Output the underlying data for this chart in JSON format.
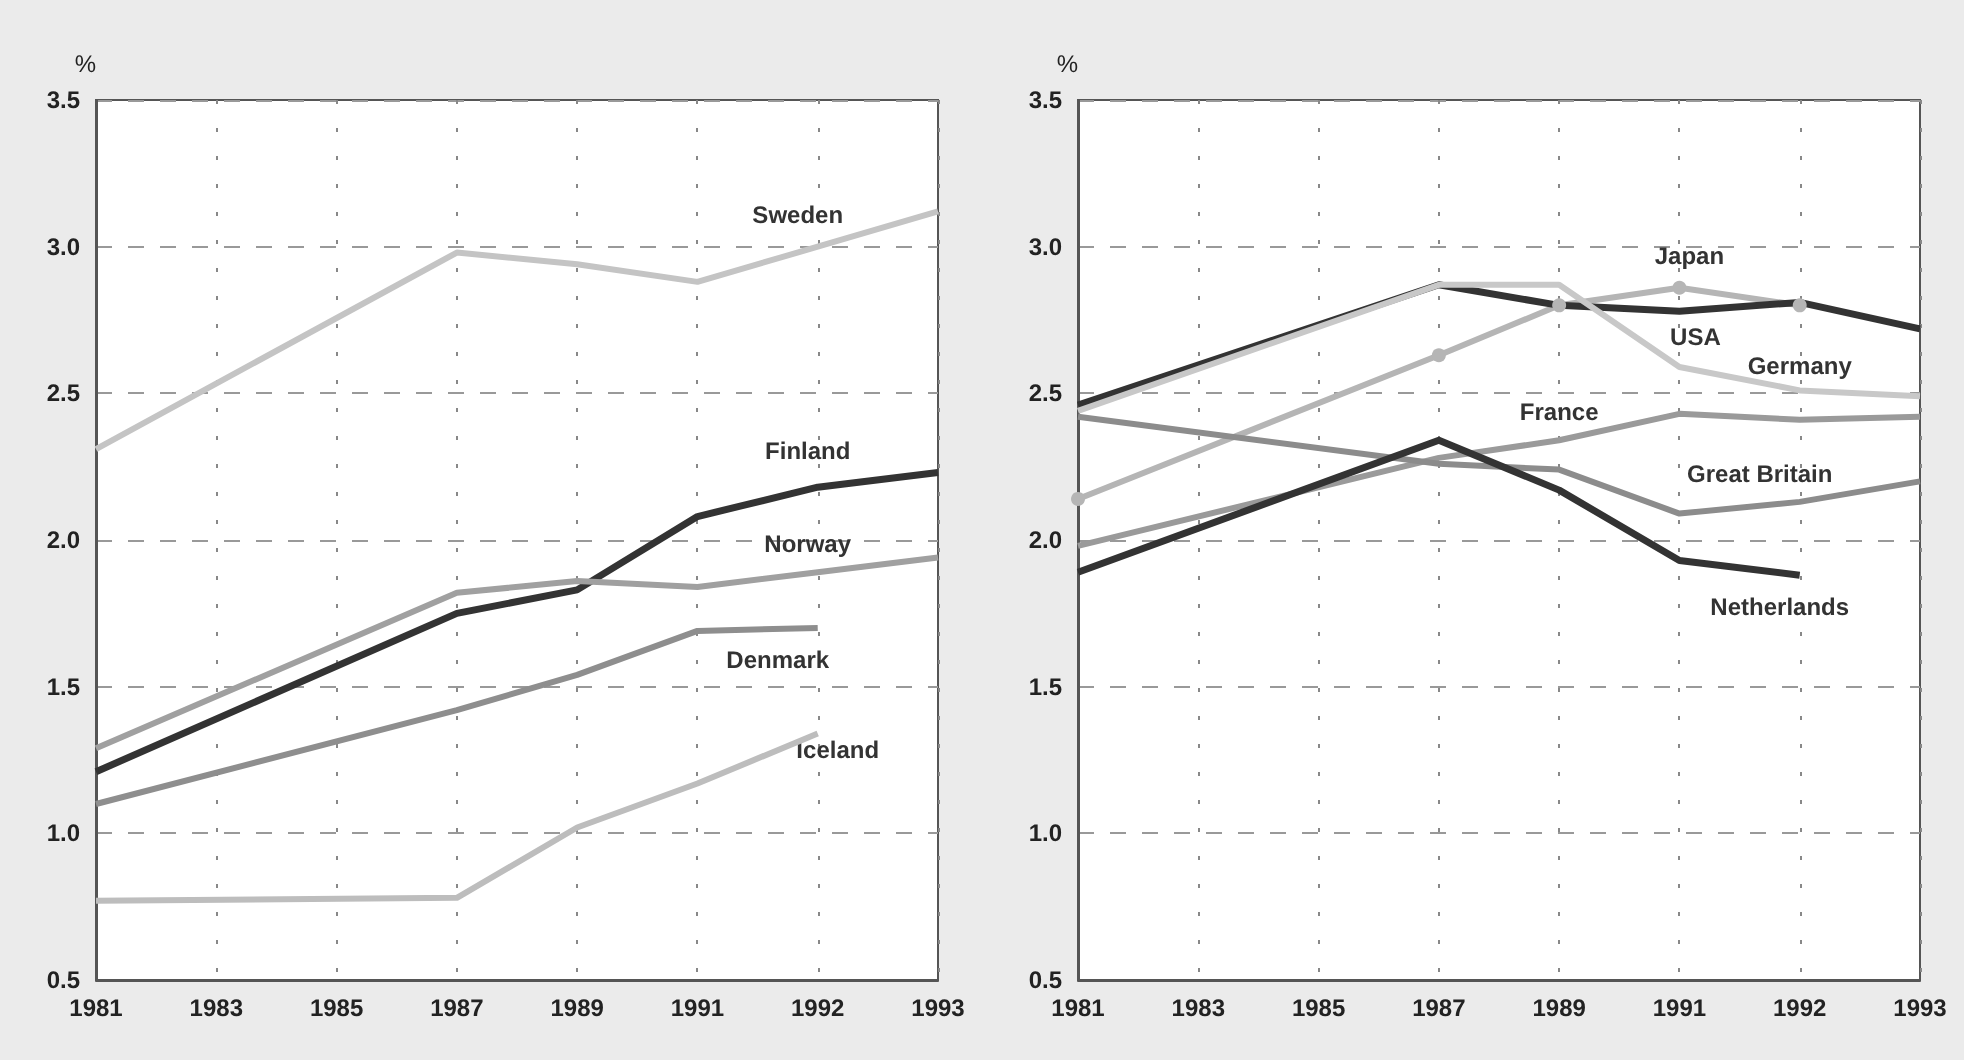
{
  "chart_data": [
    {
      "type": "line",
      "ylabel": "%",
      "categories": [
        "1981",
        "1983",
        "1985",
        "1987",
        "1989",
        "1991",
        "1992",
        "1993"
      ],
      "ylim": [
        0.5,
        3.5
      ],
      "yticks": [
        0.5,
        {
          "value": 1,
          "label": "1.0"
        },
        1.5,
        {
          "value": 2,
          "label": "2.0"
        },
        2.5,
        {
          "value": 3,
          "label": "3.0"
        },
        3.5
      ],
      "grid": true,
      "legend": false,
      "series": [
        {
          "name": "Sweden",
          "color": "#c4c4c4",
          "values": [
            2.31,
            null,
            null,
            2.98,
            2.94,
            2.88,
            3.0,
            3.12
          ]
        },
        {
          "name": "Finland",
          "color": "#333333",
          "values": [
            1.21,
            null,
            null,
            1.75,
            1.83,
            2.08,
            2.18,
            2.23
          ]
        },
        {
          "name": "Norway",
          "color": "#a0a0a0",
          "values": [
            1.29,
            null,
            null,
            1.82,
            1.86,
            1.84,
            1.89,
            1.94
          ]
        },
        {
          "name": "Denmark",
          "color": "#8e8e8e",
          "values": [
            1.1,
            null,
            null,
            1.42,
            1.54,
            1.69,
            1.7,
            null
          ]
        },
        {
          "name": "Iceland",
          "color": "#bdbdbd",
          "values": [
            0.77,
            null,
            null,
            0.78,
            1.02,
            1.17,
            1.34,
            null
          ]
        }
      ]
    },
    {
      "type": "line",
      "ylabel": "%",
      "categories": [
        "1981",
        "1983",
        "1985",
        "1987",
        "1989",
        "1991",
        "1992",
        "1993"
      ],
      "ylim": [
        0.5,
        3.5
      ],
      "yticks": [
        0.5,
        {
          "value": 1,
          "label": "1.0"
        },
        1.5,
        {
          "value": 2,
          "label": "2.0"
        },
        2.5,
        {
          "value": 3,
          "label": "3.0"
        },
        3.5
      ],
      "grid": true,
      "legend": false,
      "series": [
        {
          "name": "Japan",
          "color": "#b5b5b5",
          "marker": "circle",
          "values": [
            2.14,
            null,
            null,
            2.63,
            2.8,
            2.86,
            2.8,
            null
          ]
        },
        {
          "name": "USA",
          "color": "#333333",
          "values": [
            2.46,
            null,
            null,
            2.87,
            2.8,
            2.78,
            2.81,
            2.72
          ]
        },
        {
          "name": "Germany",
          "color": "#c8c8c8",
          "values": [
            2.44,
            null,
            null,
            2.87,
            2.87,
            2.59,
            2.51,
            2.49
          ]
        },
        {
          "name": "France",
          "color": "#9a9a9a",
          "values": [
            1.98,
            null,
            null,
            2.28,
            2.34,
            2.43,
            2.41,
            2.42
          ]
        },
        {
          "name": "Great Britain",
          "color": "#8c8c8c",
          "values": [
            2.42,
            null,
            null,
            2.26,
            2.24,
            2.09,
            2.13,
            2.2
          ]
        },
        {
          "name": "Netherlands",
          "color": "#333333",
          "values": [
            1.89,
            null,
            null,
            2.34,
            2.17,
            1.93,
            1.88,
            null
          ]
        }
      ]
    }
  ]
}
